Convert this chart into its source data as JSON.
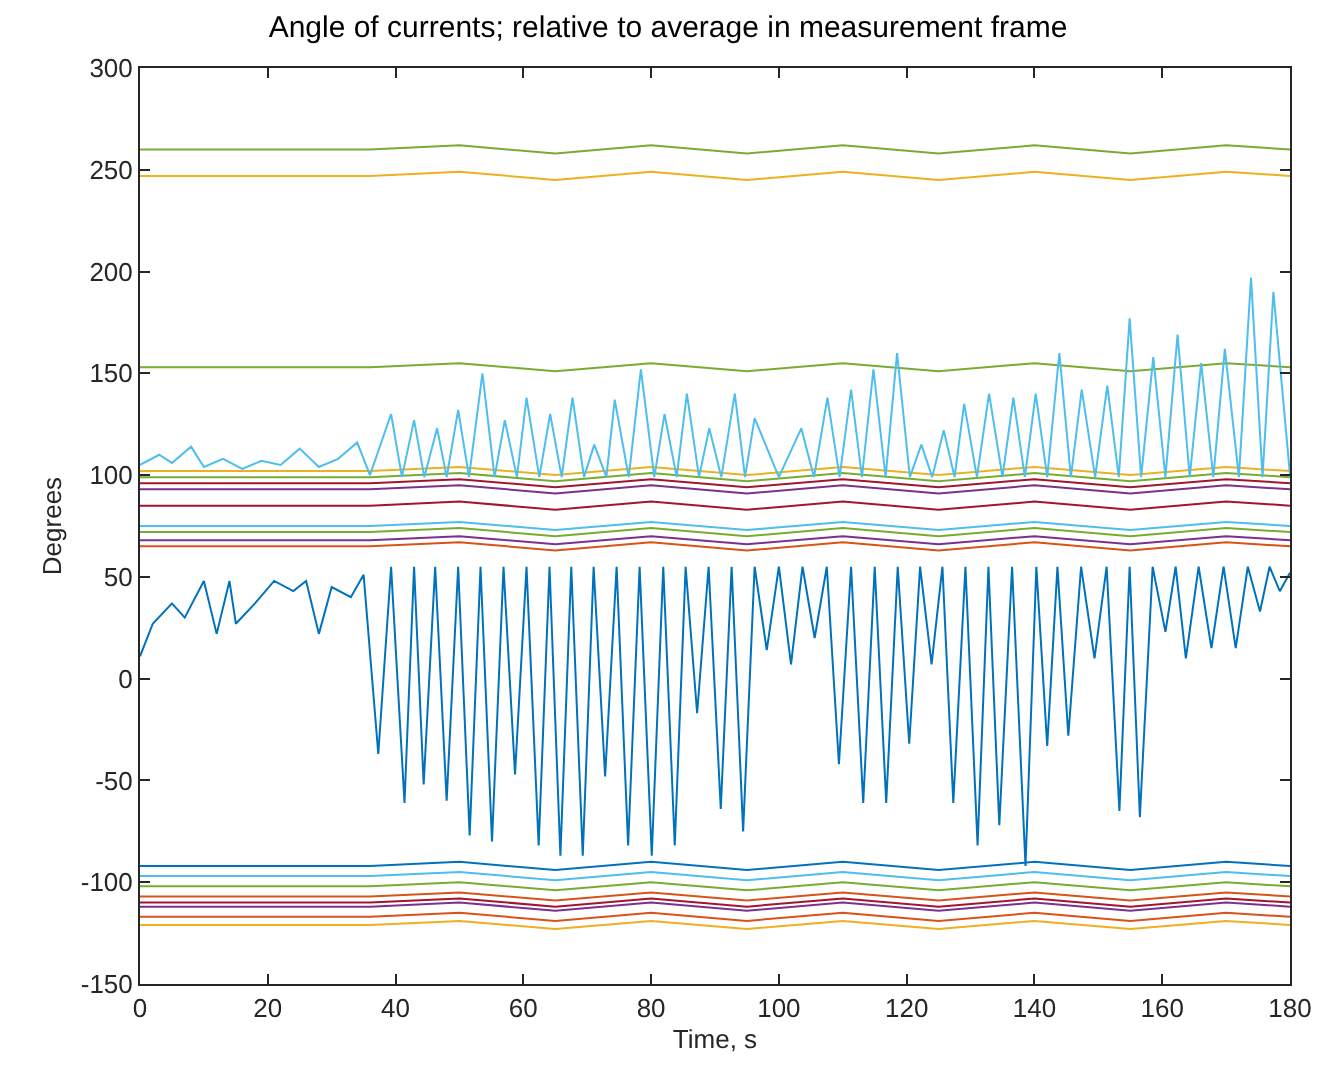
{
  "chart_data": {
    "type": "line",
    "title": "Angle of currents; relative to average in measurement frame",
    "xlabel": "Time, s",
    "ylabel": "Degrees",
    "xlim": [
      0,
      180
    ],
    "xticks": [
      0,
      20,
      40,
      60,
      80,
      100,
      120,
      140,
      160,
      180
    ],
    "ylim": [
      -150,
      300
    ],
    "yticks": [
      -150,
      -100,
      -50,
      0,
      50,
      100,
      150,
      200,
      250,
      300
    ],
    "line_style": "solid",
    "x": [
      0,
      36,
      50,
      65,
      80,
      95,
      110,
      125,
      140,
      155,
      170,
      180
    ],
    "series": [
      {
        "color": "#77ac30",
        "values": [
          260,
          260,
          262,
          258,
          262,
          258,
          262,
          258,
          262,
          258,
          262,
          260
        ]
      },
      {
        "color": "#edb120",
        "values": [
          247,
          247,
          249,
          245,
          249,
          245,
          249,
          245,
          249,
          245,
          249,
          247
        ]
      },
      {
        "color": "#77ac30",
        "values": [
          153,
          153,
          155,
          151,
          155,
          151,
          155,
          151,
          155,
          151,
          155,
          153
        ]
      },
      {
        "color": "#edb120",
        "values": [
          102,
          102,
          104,
          100,
          104,
          100,
          104,
          100,
          104,
          100,
          104,
          102
        ]
      },
      {
        "color": "#77ac30",
        "values": [
          99,
          99,
          101,
          97,
          101,
          97,
          101,
          97,
          101,
          97,
          101,
          99
        ]
      },
      {
        "color": "#a2142f",
        "values": [
          96,
          96,
          98,
          94,
          98,
          94,
          98,
          94,
          98,
          94,
          98,
          96
        ]
      },
      {
        "color": "#7e2f8e",
        "values": [
          93,
          93,
          95,
          91,
          95,
          91,
          95,
          91,
          95,
          91,
          95,
          93
        ]
      },
      {
        "color": "#a2142f",
        "values": [
          85,
          85,
          87,
          83,
          87,
          83,
          87,
          83,
          87,
          83,
          87,
          85
        ]
      },
      {
        "color": "#4dbeee",
        "values": [
          75,
          75,
          77,
          73,
          77,
          73,
          77,
          73,
          77,
          73,
          77,
          75
        ]
      },
      {
        "color": "#77ac30",
        "values": [
          72,
          72,
          74,
          70,
          74,
          70,
          74,
          70,
          74,
          70,
          74,
          72
        ]
      },
      {
        "color": "#7e2f8e",
        "values": [
          68,
          68,
          70,
          66,
          70,
          66,
          70,
          66,
          70,
          66,
          70,
          68
        ]
      },
      {
        "color": "#d95319",
        "values": [
          65,
          65,
          67,
          63,
          67,
          63,
          67,
          63,
          67,
          63,
          67,
          65
        ]
      },
      {
        "color": "#0072bd",
        "values": [
          -92,
          -92,
          -90,
          -94,
          -90,
          -94,
          -90,
          -94,
          -90,
          -94,
          -90,
          -92
        ]
      },
      {
        "color": "#4dbeee",
        "values": [
          -97,
          -97,
          -95,
          -99,
          -95,
          -99,
          -95,
          -99,
          -95,
          -99,
          -95,
          -97
        ]
      },
      {
        "color": "#77ac30",
        "values": [
          -102,
          -102,
          -100,
          -104,
          -100,
          -104,
          -100,
          -104,
          -100,
          -104,
          -100,
          -102
        ]
      },
      {
        "color": "#d95319",
        "values": [
          -107,
          -107,
          -105,
          -109,
          -105,
          -109,
          -105,
          -109,
          -105,
          -109,
          -105,
          -107
        ]
      },
      {
        "color": "#a2142f",
        "values": [
          -110,
          -110,
          -108,
          -112,
          -108,
          -112,
          -108,
          -112,
          -108,
          -112,
          -108,
          -110
        ]
      },
      {
        "color": "#7e2f8e",
        "values": [
          -112,
          -112,
          -110,
          -114,
          -110,
          -114,
          -110,
          -114,
          -110,
          -114,
          -110,
          -112
        ]
      },
      {
        "color": "#d95319",
        "values": [
          -117,
          -117,
          -115,
          -119,
          -115,
          -119,
          -115,
          -119,
          -115,
          -119,
          -115,
          -117
        ]
      },
      {
        "color": "#edb120",
        "values": [
          -121,
          -121,
          -119,
          -123,
          -119,
          -123,
          -119,
          -123,
          -119,
          -123,
          -119,
          -121
        ]
      },
      {
        "color": "#4dbeee",
        "x": [
          0,
          3,
          5,
          8,
          10,
          13,
          16,
          19,
          22,
          25,
          28,
          31,
          34,
          36,
          39.3,
          41,
          42.9,
          44.5,
          46.5,
          48,
          49.8,
          51.5,
          53.6,
          55.5,
          57.1,
          59,
          60.5,
          62.5,
          64.2,
          66,
          67.7,
          69.5,
          71.1,
          73,
          74.3,
          76.5,
          78.4,
          80.5,
          82.1,
          84,
          85.6,
          87.5,
          89.1,
          91,
          93.1,
          94.7,
          96.2,
          100,
          103.5,
          105.5,
          107.6,
          109.5,
          111.3,
          113,
          114.8,
          116.7,
          118.5,
          120.5,
          122.3,
          124,
          125.8,
          127.5,
          129,
          131,
          132.9,
          135,
          136.7,
          138.5,
          140.2,
          142,
          143.9,
          145.7,
          147.4,
          149.5,
          151.4,
          153.2,
          154.9,
          156.7,
          158.6,
          160.5,
          162.4,
          164.3,
          166.1,
          168,
          169.8,
          172,
          173.9,
          175.7,
          177.4,
          180
        ],
        "values": [
          105,
          110,
          106,
          114,
          104,
          108,
          103,
          107,
          105,
          113,
          104,
          108,
          116,
          100,
          130,
          99,
          127,
          99,
          123,
          99,
          132,
          99,
          150,
          99,
          127,
          99,
          138,
          99,
          130,
          99,
          138,
          99,
          115,
          99,
          137,
          99,
          152,
          99,
          130,
          99,
          140,
          99,
          123,
          99,
          140,
          99,
          128,
          99,
          123,
          99,
          138,
          99,
          142,
          99,
          152,
          99,
          160,
          99,
          115,
          99,
          122,
          99,
          135,
          99,
          140,
          99,
          138,
          99,
          140,
          99,
          160,
          99,
          142,
          99,
          144,
          99,
          177,
          99,
          158,
          99,
          169,
          99,
          155,
          99,
          162,
          99,
          197,
          99,
          190,
          100
        ]
      },
      {
        "color": "#0072bd",
        "x": [
          0,
          2,
          5,
          7,
          10,
          12,
          14,
          15,
          18,
          21,
          24,
          26,
          28,
          30,
          33,
          35,
          37.3,
          39.3,
          41.4,
          42.9,
          44.4,
          46.2,
          48,
          49.8,
          51.6,
          53.3,
          55.1,
          56.9,
          58.7,
          60.5,
          62.4,
          64.1,
          65.8,
          67.5,
          69.3,
          71,
          72.8,
          74.6,
          76.4,
          78.2,
          80.1,
          81.9,
          83.7,
          85.4,
          87.2,
          89,
          90.9,
          92.6,
          94.4,
          96.2,
          98.1,
          100,
          101.9,
          103.7,
          105.6,
          107.5,
          109.4,
          111.3,
          113.2,
          115,
          116.8,
          118.6,
          120.4,
          122.1,
          123.9,
          125.6,
          127.3,
          129.2,
          131.1,
          132.8,
          134.5,
          136.5,
          138.6,
          140.3,
          142,
          143.6,
          145.3,
          147.3,
          149.4,
          151.3,
          153.3,
          154.9,
          156.5,
          158.5,
          160.5,
          162.1,
          163.7,
          165.7,
          167.7,
          169.6,
          171.5,
          173.4,
          175.3,
          176.8,
          178.4,
          180
        ],
        "values": [
          11,
          27,
          37,
          30,
          48,
          22,
          48,
          27,
          37,
          48,
          43,
          48,
          22,
          45,
          40,
          51,
          -37,
          55,
          -61,
          55,
          -52,
          55,
          -60,
          55,
          -77,
          55,
          -80,
          55,
          -47,
          55,
          -82,
          55,
          -87,
          55,
          -87,
          55,
          -48,
          55,
          -82,
          55,
          -87,
          55,
          -82,
          55,
          -17,
          55,
          -64,
          55,
          -75,
          55,
          14,
          55,
          7,
          55,
          20,
          55,
          -42,
          55,
          -61,
          55,
          -61,
          55,
          -32,
          55,
          7,
          55,
          -61,
          55,
          -82,
          55,
          -72,
          55,
          -92,
          55,
          -33,
          55,
          -28,
          55,
          10,
          55,
          -65,
          55,
          -68,
          55,
          23,
          55,
          10,
          55,
          15,
          55,
          15,
          55,
          33,
          55,
          43,
          52
        ]
      }
    ]
  }
}
